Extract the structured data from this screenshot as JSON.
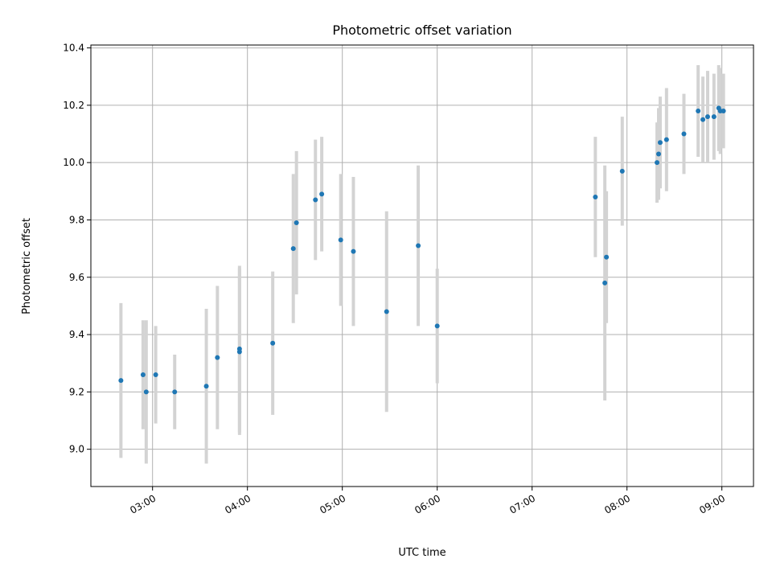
{
  "chart_data": {
    "type": "scatter",
    "title": "Photometric offset variation",
    "xlabel": "UTC time",
    "ylabel": "Photometric offset",
    "xlim": [
      "02:21",
      "09:20"
    ],
    "ylim": [
      8.87,
      10.41
    ],
    "xticks": [
      "03:00",
      "04:00",
      "05:00",
      "06:00",
      "07:00",
      "08:00",
      "09:00"
    ],
    "yticks": [
      "9.0",
      "9.2",
      "9.4",
      "9.6",
      "9.8",
      "10.0",
      "10.2",
      "10.4"
    ],
    "grid": true,
    "colors": {
      "points": "#1f77b4",
      "errorbars": "#d3d3d3",
      "grid": "#b0b0b0"
    },
    "series": [
      {
        "points": [
          {
            "x": "02:40",
            "y": 9.24,
            "yerr": 0.27
          },
          {
            "x": "02:54",
            "y": 9.26,
            "yerr": 0.19
          },
          {
            "x": "02:56",
            "y": 9.2,
            "yerr": 0.25
          },
          {
            "x": "03:02",
            "y": 9.26,
            "yerr": 0.17
          },
          {
            "x": "03:14",
            "y": 9.2,
            "yerr": 0.13
          },
          {
            "x": "03:34",
            "y": 9.22,
            "yerr": 0.27
          },
          {
            "x": "03:41",
            "y": 9.32,
            "yerr": 0.25
          },
          {
            "x": "03:55",
            "y": 9.35,
            "yerr": 0.29
          },
          {
            "x": "03:55",
            "y": 9.34,
            "yerr": 0.29
          },
          {
            "x": "04:16",
            "y": 9.37,
            "yerr": 0.25
          },
          {
            "x": "04:29",
            "y": 9.7,
            "yerr": 0.26
          },
          {
            "x": "04:31",
            "y": 9.79,
            "yerr": 0.25
          },
          {
            "x": "04:43",
            "y": 9.87,
            "yerr": 0.21
          },
          {
            "x": "04:47",
            "y": 9.89,
            "yerr": 0.2
          },
          {
            "x": "04:59",
            "y": 9.73,
            "yerr": 0.23
          },
          {
            "x": "05:07",
            "y": 9.69,
            "yerr": 0.26
          },
          {
            "x": "05:28",
            "y": 9.48,
            "yerr": 0.35
          },
          {
            "x": "05:48",
            "y": 9.71,
            "yerr": 0.28
          },
          {
            "x": "06:00",
            "y": 9.43,
            "yerr": 0.2
          },
          {
            "x": "07:40",
            "y": 9.88,
            "yerr": 0.21
          },
          {
            "x": "07:46",
            "y": 9.58,
            "yerr": 0.41
          },
          {
            "x": "07:47",
            "y": 9.67,
            "yerr": 0.23
          },
          {
            "x": "07:57",
            "y": 9.97,
            "yerr": 0.19
          },
          {
            "x": "08:19",
            "y": 10.0,
            "yerr": 0.14
          },
          {
            "x": "08:20",
            "y": 10.03,
            "yerr": 0.16
          },
          {
            "x": "08:21",
            "y": 10.07,
            "yerr": 0.16
          },
          {
            "x": "08:25",
            "y": 10.08,
            "yerr": 0.18
          },
          {
            "x": "08:36",
            "y": 10.1,
            "yerr": 0.14
          },
          {
            "x": "08:45",
            "y": 10.18,
            "yerr": 0.16
          },
          {
            "x": "08:48",
            "y": 10.15,
            "yerr": 0.15
          },
          {
            "x": "08:51",
            "y": 10.16,
            "yerr": 0.16
          },
          {
            "x": "08:55",
            "y": 10.16,
            "yerr": 0.15
          },
          {
            "x": "08:58",
            "y": 10.19,
            "yerr": 0.15
          },
          {
            "x": "08:59",
            "y": 10.18,
            "yerr": 0.15
          },
          {
            "x": "09:01",
            "y": 10.18,
            "yerr": 0.13
          }
        ]
      }
    ]
  }
}
